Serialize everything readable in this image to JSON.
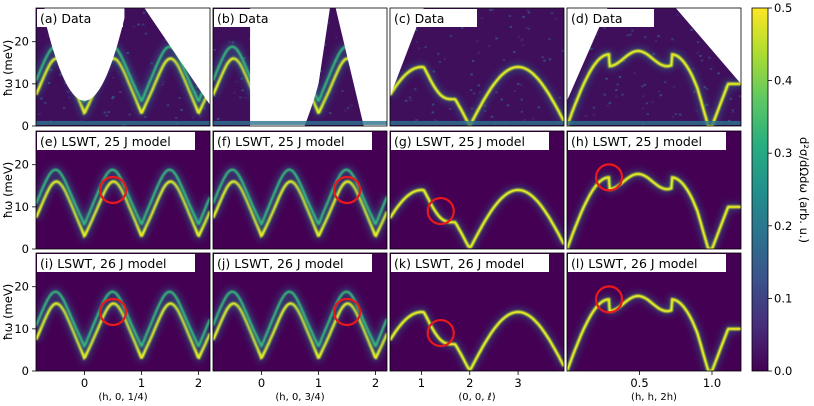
{
  "chart_data": {
    "type": "heatmap",
    "colormap": "viridis",
    "colorbar": {
      "label": "d²σ/dΩdω (arb. u.)",
      "range": [
        0.0,
        0.5
      ],
      "ticks": [
        "0.0",
        "0.1",
        "0.2",
        "0.3",
        "0.4",
        "0.5"
      ]
    },
    "ylabel": "ħω (meV)",
    "yticks": [
      "0",
      "10",
      "20"
    ],
    "ylim": [
      0,
      28
    ],
    "columns": [
      {
        "xlabel": "(h, 0, 1/4)",
        "xlim": [
          -0.85,
          2.2
        ],
        "xticks": [
          "0",
          "1",
          "2"
        ]
      },
      {
        "xlabel": "(h, 0, 3/4)",
        "xlim": [
          -0.85,
          2.2
        ],
        "xticks": [
          "0",
          "1",
          "2"
        ]
      },
      {
        "xlabel": "(0, 0, ℓ)",
        "xlim": [
          0.35,
          3.95
        ],
        "xticks": [
          "1",
          "2",
          "3"
        ]
      },
      {
        "xlabel": "(h, h, 2h)",
        "xlim": [
          0.0,
          1.2
        ],
        "xticks": [
          "0.5",
          "1.0"
        ]
      }
    ],
    "panels": [
      {
        "title": "(a) Data"
      },
      {
        "title": "(b) Data"
      },
      {
        "title": "(c) Data"
      },
      {
        "title": "(d) Data"
      },
      {
        "title": "(e) LSWT, 25 J model"
      },
      {
        "title": "(f) LSWT, 25 J model"
      },
      {
        "title": "(g) LSWT, 25 J model"
      },
      {
        "title": "(h) LSWT, 25 J model"
      },
      {
        "title": "(i) LSWT, 26 J model"
      },
      {
        "title": "(j) LSWT, 26 J model"
      },
      {
        "title": "(k) LSWT, 26 J model"
      },
      {
        "title": "(l) LSWT, 26 J model"
      }
    ],
    "highlight_circles": [
      {
        "panel": "e",
        "x": 0.5,
        "energy": 14
      },
      {
        "panel": "f",
        "x": 1.5,
        "energy": 14
      },
      {
        "panel": "g",
        "x": 1.4,
        "energy": 9
      },
      {
        "panel": "h",
        "x": 0.29,
        "energy": 17
      },
      {
        "panel": "j",
        "x": 1.5,
        "energy": 14
      },
      {
        "panel": "i",
        "x": 0.5,
        "energy": 14
      },
      {
        "panel": "k",
        "x": 1.4,
        "energy": 9
      },
      {
        "panel": "l",
        "x": 0.29,
        "energy": 17
      }
    ]
  }
}
